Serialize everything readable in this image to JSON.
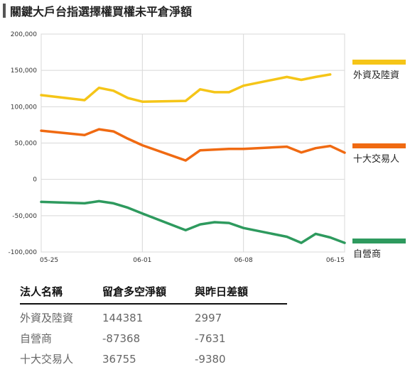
{
  "title": "關鍵大戶台指選擇權買權未平倉淨額",
  "colors": {
    "foreign": "#f5c518",
    "top10": "#f06a12",
    "dealer": "#2e9a5e",
    "grid": "#d8d8d8",
    "frame": "#c8c8c8"
  },
  "chart_data": {
    "type": "line",
    "x": [
      "05-25",
      "05-26",
      "05-27",
      "05-28",
      "05-29",
      "05-30",
      "05-31",
      "06-01",
      "06-02",
      "06-03",
      "06-04",
      "06-05",
      "06-06",
      "06-07",
      "06-08",
      "06-09",
      "06-10",
      "06-11",
      "06-12",
      "06-13",
      "06-14",
      "06-15"
    ],
    "xticks": [
      "05-25",
      "06-01",
      "06-08",
      "06-15"
    ],
    "yticks": [
      200000,
      150000,
      100000,
      50000,
      0,
      -50000,
      -100000
    ],
    "ytick_labels": [
      "200,000",
      "150,000",
      "100,000",
      "50,000",
      "0",
      "-50,000",
      "-100,000"
    ],
    "ylim": [
      -100000,
      200000
    ],
    "legend_placement": "right",
    "series": [
      {
        "name": "外資及陸資",
        "color_key": "foreign",
        "points": [
          [
            "05-25",
            116000
          ],
          [
            "05-28",
            109000
          ],
          [
            "05-29",
            126000
          ],
          [
            "05-30",
            122000
          ],
          [
            "05-31",
            112000
          ],
          [
            "06-01",
            107000
          ],
          [
            "06-04",
            108000
          ],
          [
            "06-05",
            124000
          ],
          [
            "06-06",
            120000
          ],
          [
            "06-07",
            120000
          ],
          [
            "06-08",
            129000
          ],
          [
            "06-11",
            141000
          ],
          [
            "06-12",
            137000
          ],
          [
            "06-13",
            141000
          ],
          [
            "06-14",
            144381
          ]
        ]
      },
      {
        "name": "十大交易人",
        "color_key": "top10",
        "points": [
          [
            "05-25",
            67000
          ],
          [
            "05-28",
            61000
          ],
          [
            "05-29",
            69000
          ],
          [
            "05-30",
            66000
          ],
          [
            "05-31",
            56000
          ],
          [
            "06-01",
            47000
          ],
          [
            "06-04",
            26000
          ],
          [
            "06-05",
            40000
          ],
          [
            "06-06",
            41000
          ],
          [
            "06-07",
            42000
          ],
          [
            "06-08",
            42000
          ],
          [
            "06-11",
            45000
          ],
          [
            "06-12",
            37000
          ],
          [
            "06-13",
            43000
          ],
          [
            "06-14",
            46000
          ],
          [
            "06-15",
            36755
          ]
        ]
      },
      {
        "name": "自營商",
        "color_key": "dealer",
        "points": [
          [
            "05-25",
            -31000
          ],
          [
            "05-28",
            -33000
          ],
          [
            "05-29",
            -30000
          ],
          [
            "05-30",
            -33000
          ],
          [
            "05-31",
            -39000
          ],
          [
            "06-01",
            -47000
          ],
          [
            "06-04",
            -70000
          ],
          [
            "06-05",
            -62000
          ],
          [
            "06-06",
            -59000
          ],
          [
            "06-07",
            -60000
          ],
          [
            "06-08",
            -67000
          ],
          [
            "06-11",
            -79000
          ],
          [
            "06-12",
            -87368
          ],
          [
            "06-13",
            -75000
          ],
          [
            "06-14",
            -80000
          ],
          [
            "06-15",
            -87368
          ]
        ]
      }
    ]
  },
  "table": {
    "headers": [
      "法人名稱",
      "留倉多空淨額",
      "與昨日差額"
    ],
    "rows": [
      [
        "外資及陸資",
        "144381",
        "2997"
      ],
      [
        "自營商",
        "-87368",
        "-7631"
      ],
      [
        "十大交易人",
        "36755",
        "-9380"
      ]
    ]
  }
}
